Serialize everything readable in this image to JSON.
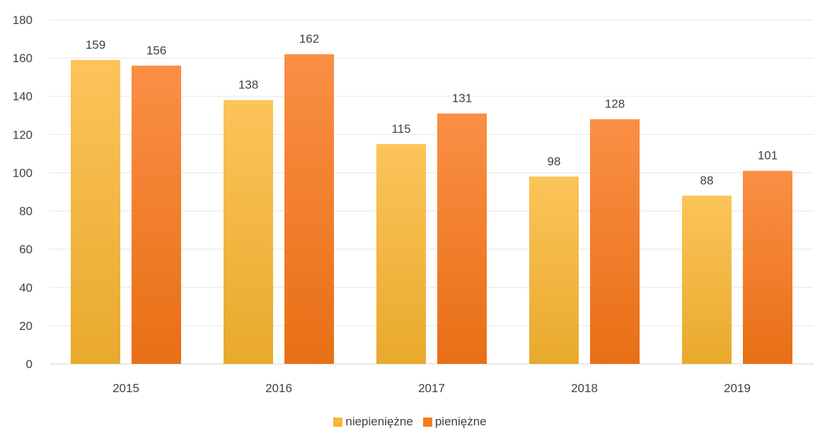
{
  "chart_data": {
    "type": "bar",
    "categories": [
      "2015",
      "2016",
      "2017",
      "2018",
      "2019"
    ],
    "series": [
      {
        "name": "niepieniężne",
        "values": [
          159,
          138,
          115,
          98,
          88
        ],
        "color": "#f7b733",
        "color_dark": "#e2a62a"
      },
      {
        "name": "pieniężne",
        "values": [
          156,
          162,
          131,
          128,
          101
        ],
        "color": "#f47c1f",
        "color_dark": "#e6701a"
      }
    ],
    "yticks": [
      "0",
      "20",
      "40",
      "60",
      "80",
      "100",
      "120",
      "140",
      "160",
      "180"
    ],
    "ylim": [
      0,
      180
    ],
    "grid": true,
    "legend_position": "bottom"
  }
}
